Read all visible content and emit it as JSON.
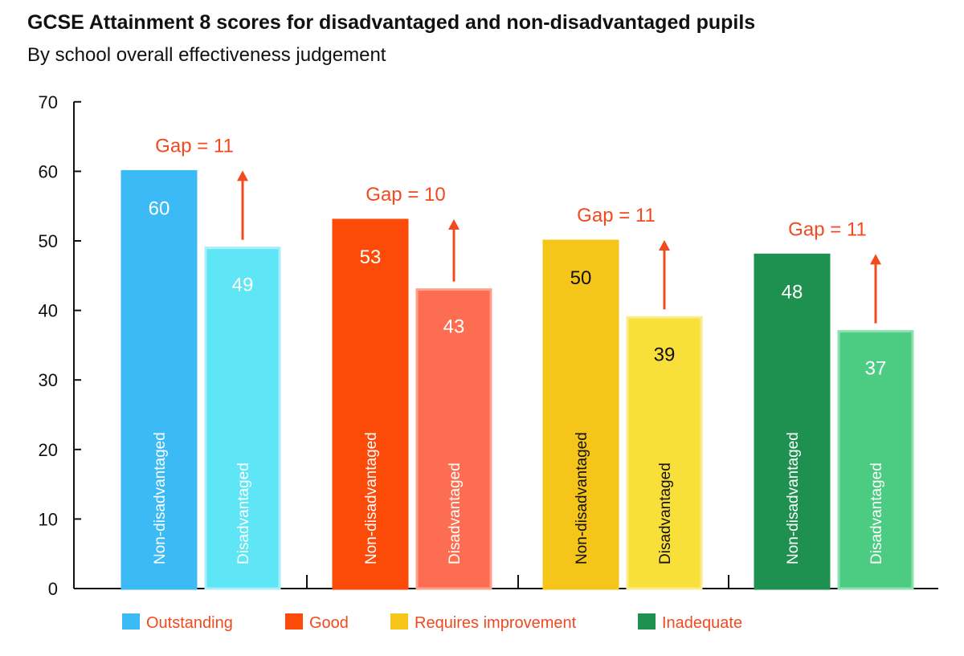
{
  "title": "GCSE Attainment 8 scores for disadvantaged and non-disadvantaged pupils",
  "subtitle": "By school overall effectiveness judgement",
  "chart_data": {
    "type": "bar",
    "title": "GCSE Attainment 8 scores for disadvantaged and non-disadvantaged pupils",
    "subtitle": "By school overall effectiveness judgement",
    "xlabel": "",
    "ylabel": "",
    "ylim": [
      0,
      70
    ],
    "yticks": [
      0,
      10,
      20,
      30,
      40,
      50,
      60,
      70
    ],
    "grid": false,
    "legend_position": "bottom",
    "bar_labels": [
      "Non-disadvantaged",
      "Disadvantaged"
    ],
    "groups": [
      {
        "name": "Outstanding",
        "values": [
          60,
          49
        ],
        "gap_label": "Gap = 11",
        "colors": [
          "#3cbaf5",
          "#5ee6f7"
        ],
        "border": "#a9eefb",
        "text_color": "#ffffff"
      },
      {
        "name": "Good",
        "values": [
          53,
          43
        ],
        "gap_label": "Gap = 10",
        "colors": [
          "#fc4a08",
          "#fd6d52"
        ],
        "border": "#fea08c",
        "text_color": "#ffffff"
      },
      {
        "name": "Requires improvement",
        "values": [
          50,
          39
        ],
        "gap_label": "Gap = 11",
        "colors": [
          "#f5c519",
          "#f8df3a"
        ],
        "border": "#fbeb8c",
        "text_color": "#111111"
      },
      {
        "name": "Inadequate",
        "values": [
          48,
          37
        ],
        "gap_label": "Gap = 11",
        "colors": [
          "#1e9150",
          "#4ccb83"
        ],
        "border": "#8fe0b1",
        "text_color": "#ffffff"
      }
    ],
    "accent_color": "#f04a1e"
  }
}
